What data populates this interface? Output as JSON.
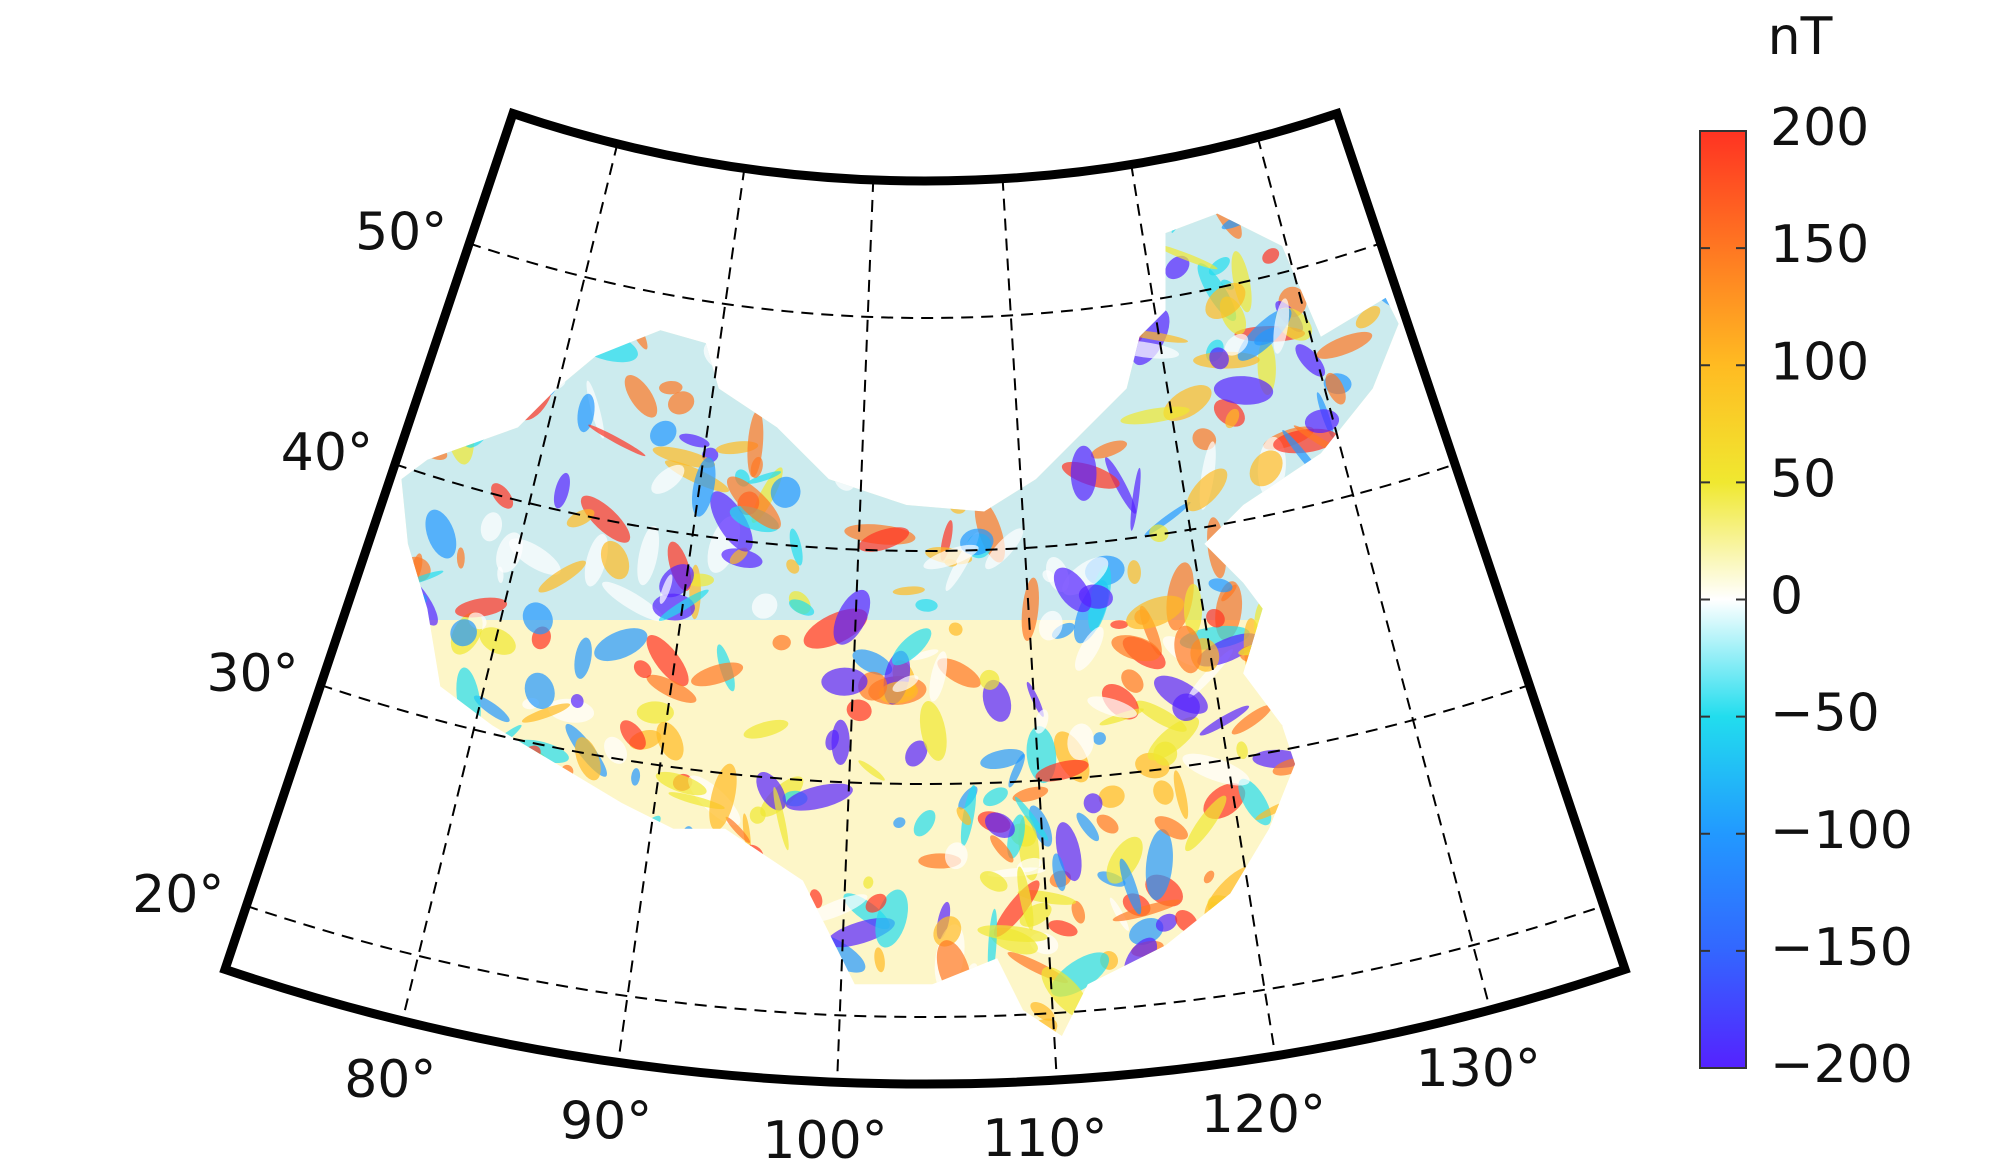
{
  "map": {
    "colorbar": {
      "unit": "nT",
      "clim": [
        -200,
        200
      ],
      "ticks": [
        200,
        150,
        100,
        50,
        0,
        {
          "value": -50,
          "label": "−50"
        },
        {
          "value": -100,
          "label": "−100"
        },
        {
          "value": -150,
          "label": "−150"
        },
        {
          "value": -200,
          "label": "−200"
        }
      ]
    },
    "latitude_labels": [
      {
        "value": 50,
        "label": "50°"
      },
      {
        "value": 40,
        "label": "40°"
      },
      {
        "value": 30,
        "label": "30°"
      },
      {
        "value": 20,
        "label": "20°"
      }
    ],
    "longitude_labels": [
      {
        "value": 80,
        "label": "80°"
      },
      {
        "value": 90,
        "label": "90°"
      },
      {
        "value": 100,
        "label": "100°"
      },
      {
        "value": 110,
        "label": "110°"
      },
      {
        "value": 120,
        "label": "120°"
      },
      {
        "value": 130,
        "label": "130°"
      }
    ]
  }
}
